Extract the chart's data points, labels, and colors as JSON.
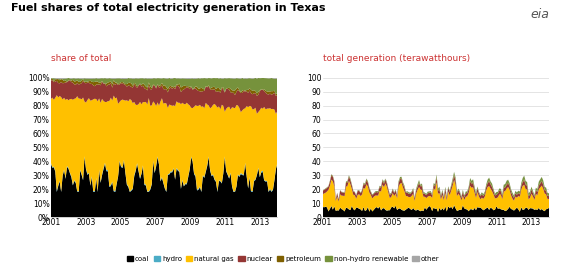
{
  "title": "Fuel shares of total electricity generation in Texas",
  "left_ylabel": "share of total",
  "right_ylabel": "total generation (terawatthours)",
  "colors": {
    "coal": "#000000",
    "hydro": "#4bacc6",
    "natural_gas": "#ffc000",
    "nuclear": "#943634",
    "petroleum": "#7f6000",
    "non_hydro_renewable": "#76923c",
    "other": "#a6a6a6"
  },
  "legend_labels": [
    "coal",
    "hydro",
    "natural gas",
    "nuclear",
    "petroleum",
    "non-hydro renewable",
    "other"
  ],
  "left_yticks": [
    "0%",
    "10%",
    "20%",
    "30%",
    "40%",
    "50%",
    "60%",
    "70%",
    "80%",
    "90%",
    "100%"
  ],
  "right_yticks": [
    "0",
    "10",
    "20",
    "30",
    "40",
    "50",
    "60",
    "70",
    "80",
    "90",
    "100"
  ],
  "xtick_years": [
    2001,
    2003,
    2005,
    2007,
    2009,
    2011,
    2013
  ],
  "background_color": "#ffffff"
}
